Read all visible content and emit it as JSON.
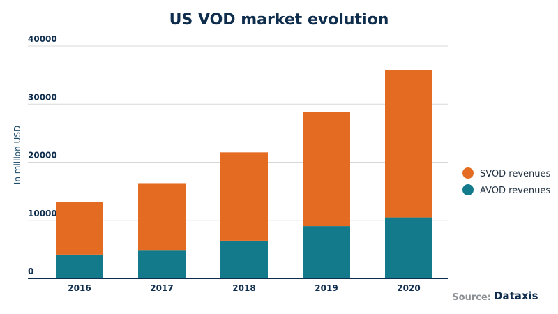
{
  "chart_data": {
    "type": "bar",
    "stacked": true,
    "title": "US VOD market evolution",
    "ylabel": "In million USD",
    "xlabel": "",
    "categories": [
      "2016",
      "2017",
      "2018",
      "2019",
      "2020"
    ],
    "yticks": [
      "0",
      "10000",
      "20000",
      "30000",
      "40000"
    ],
    "ylim": [
      0,
      40000
    ],
    "grid": true,
    "legend_position": "right",
    "series": [
      {
        "name": "AVOD revenues",
        "color": "#127a8a",
        "values": [
          4100,
          4900,
          6500,
          9000,
          10500
        ]
      },
      {
        "name": "SVOD revenues",
        "color": "#e36c22",
        "values": [
          9000,
          11500,
          15200,
          19700,
          25400
        ]
      }
    ],
    "legend": [
      {
        "name": "SVOD revenues",
        "color": "#e36c22"
      },
      {
        "name": "AVOD revenues",
        "color": "#127a8a"
      }
    ]
  },
  "source": {
    "label": "Source:",
    "brand": "Dataxis"
  }
}
